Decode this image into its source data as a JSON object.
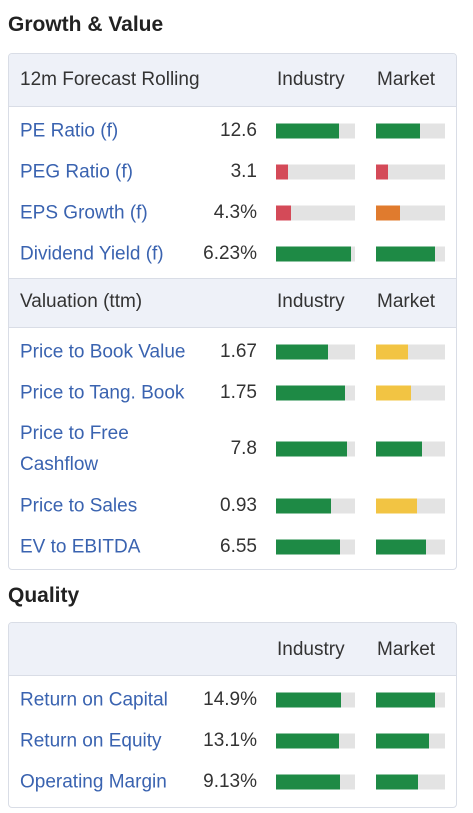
{
  "growth_title": "Growth & Value",
  "quality_title": "Quality",
  "colors": {
    "green": "#1e8a45",
    "red": "#d44a58",
    "orange": "#e07b2e",
    "yellow": "#f2c443",
    "track": "#e3e3e3"
  },
  "forecast": {
    "header": "12m Forecast Rolling",
    "col_industry": "Industry",
    "col_market": "Market",
    "rows": [
      {
        "label": "PE Ratio (f)",
        "value": "12.6",
        "industry": 0.8,
        "industry_color": "green",
        "market": 0.64,
        "market_color": "green"
      },
      {
        "label": "PEG Ratio (f)",
        "value": "3.1",
        "industry": 0.15,
        "industry_color": "red",
        "market": 0.17,
        "market_color": "red"
      },
      {
        "label": "EPS Growth (f)",
        "value": "4.3%",
        "industry": 0.19,
        "industry_color": "red",
        "market": 0.35,
        "market_color": "orange"
      },
      {
        "label": "Dividend Yield (f)",
        "value": "6.23%",
        "industry": 0.95,
        "industry_color": "green",
        "market": 0.86,
        "market_color": "green"
      }
    ]
  },
  "valuation": {
    "header": "Valuation (ttm)",
    "col_industry": "Industry",
    "col_market": "Market",
    "rows": [
      {
        "label": "Price to Book Value",
        "value": "1.67",
        "industry": 0.66,
        "industry_color": "green",
        "market": 0.46,
        "market_color": "yellow"
      },
      {
        "label": "Price to Tang. Book",
        "value": "1.75",
        "industry": 0.87,
        "industry_color": "green",
        "market": 0.51,
        "market_color": "yellow"
      },
      {
        "label": "Price to Free Cashflow",
        "value": "7.8",
        "industry": 0.9,
        "industry_color": "green",
        "market": 0.67,
        "market_color": "green"
      },
      {
        "label": "Price to Sales",
        "value": "0.93",
        "industry": 0.7,
        "industry_color": "green",
        "market": 0.59,
        "market_color": "yellow"
      },
      {
        "label": "EV to EBITDA",
        "value": "6.55",
        "industry": 0.81,
        "industry_color": "green",
        "market": 0.72,
        "market_color": "green"
      }
    ]
  },
  "quality": {
    "header": "",
    "col_industry": "Industry",
    "col_market": "Market",
    "rows": [
      {
        "label": "Return on Capital",
        "value": "14.9%",
        "industry": 0.82,
        "industry_color": "green",
        "market": 0.86,
        "market_color": "green"
      },
      {
        "label": "Return on Equity",
        "value": "13.1%",
        "industry": 0.8,
        "industry_color": "green",
        "market": 0.77,
        "market_color": "green"
      },
      {
        "label": "Operating Margin",
        "value": "9.13%",
        "industry": 0.81,
        "industry_color": "green",
        "market": 0.61,
        "market_color": "green"
      }
    ]
  }
}
